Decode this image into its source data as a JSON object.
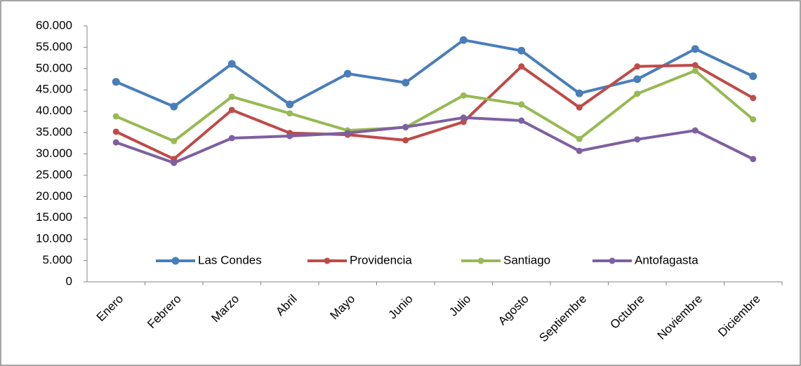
{
  "chart_data": {
    "type": "line",
    "categories": [
      "Enero",
      "Febrero",
      "Marzo",
      "Abril",
      "Mayo",
      "Junio",
      "Julio",
      "Agosto",
      "Septiembre",
      "Octubre",
      "Noviembre",
      "Diciembre"
    ],
    "series": [
      {
        "name": "Las Condes",
        "color": "#4a7ebb",
        "values": [
          46900,
          41100,
          51100,
          41600,
          48800,
          46700,
          56700,
          54200,
          44200,
          47500,
          54600,
          48200
        ]
      },
      {
        "name": "Providencia",
        "color": "#be4b48",
        "values": [
          35200,
          28800,
          40300,
          34900,
          34500,
          33200,
          37500,
          50500,
          40900,
          50500,
          50800,
          43100
        ]
      },
      {
        "name": "Santiago",
        "color": "#98b954",
        "values": [
          38800,
          33000,
          43400,
          39500,
          35500,
          36200,
          43700,
          41600,
          33500,
          44100,
          49500,
          38100
        ]
      },
      {
        "name": "Antofagasta",
        "color": "#7d60a0",
        "values": [
          32700,
          27900,
          33700,
          34200,
          34900,
          36300,
          38500,
          37800,
          30700,
          33400,
          35500,
          28800
        ]
      }
    ],
    "ylim": [
      0,
      60000
    ],
    "yticks": [
      0,
      {
        "value": 5000,
        "label": "5.000"
      },
      {
        "value": 10000,
        "label": "10.000"
      },
      {
        "value": 15000,
        "label": "15.000"
      },
      {
        "value": 20000,
        "label": "20.000"
      },
      {
        "value": 25000,
        "label": "25.000"
      },
      {
        "value": 30000,
        "label": "30.000"
      },
      {
        "value": 35000,
        "label": "35.000"
      },
      {
        "value": 40000,
        "label": "40.000"
      },
      {
        "value": 45000,
        "label": "45.000"
      },
      {
        "value": 50000,
        "label": "50.000"
      },
      {
        "value": 55000,
        "label": "55.000"
      },
      {
        "value": 60000,
        "label": "60.000"
      }
    ],
    "grid": false,
    "legend": "bottom"
  }
}
